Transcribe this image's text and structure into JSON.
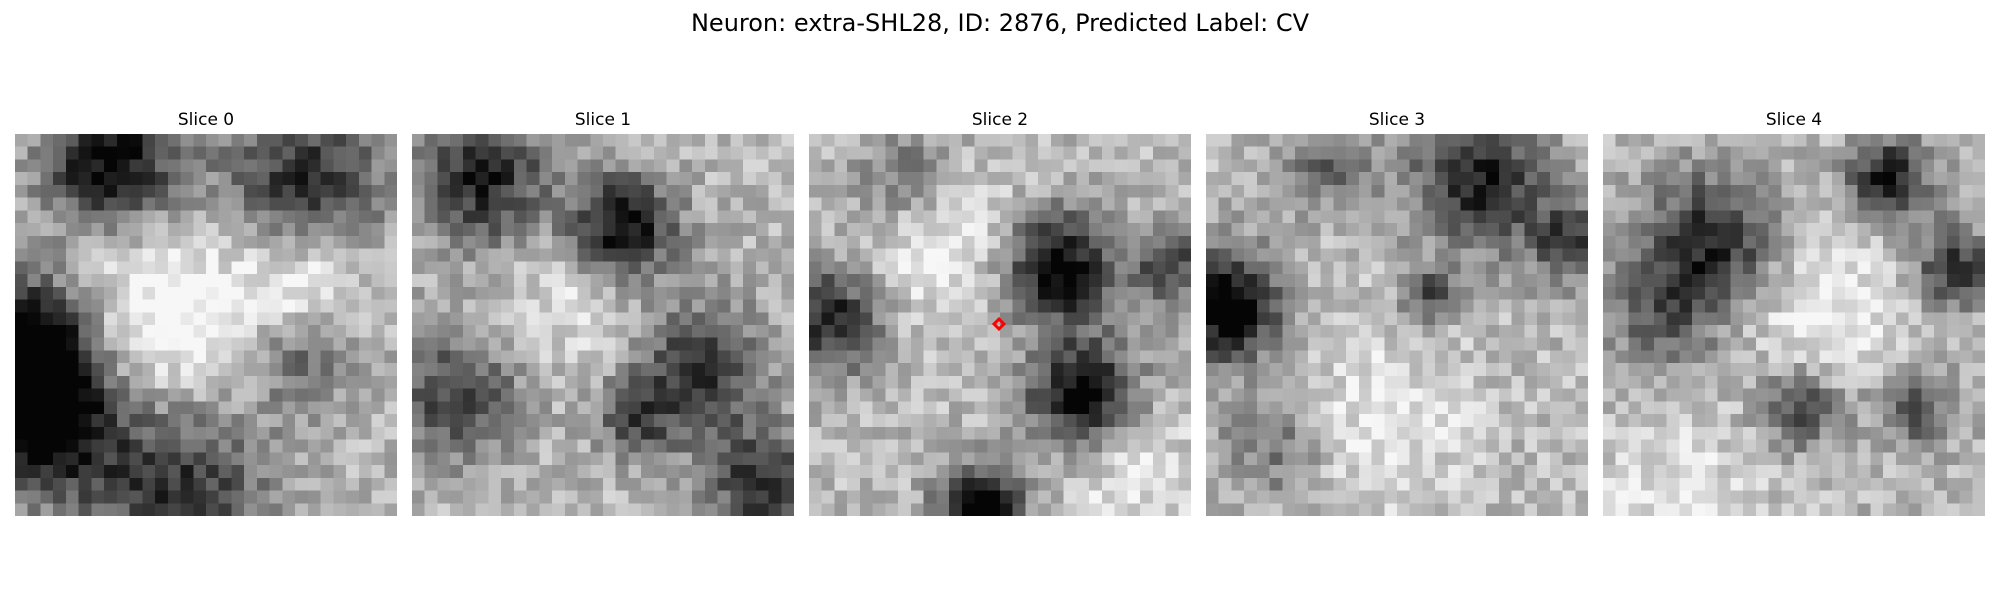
{
  "figure": {
    "title": "Neuron: extra-SHL28, ID: 2876, Predicted Label: CV"
  },
  "panels": [
    {
      "title": "Slice 0"
    },
    {
      "title": "Slice 1"
    },
    {
      "title": "Slice 2"
    },
    {
      "title": "Slice 3"
    },
    {
      "title": "Slice 4"
    }
  ],
  "marker": {
    "panel_index": 2,
    "color": "#ff0000",
    "shape": "diamond"
  },
  "colormap": "gray"
}
